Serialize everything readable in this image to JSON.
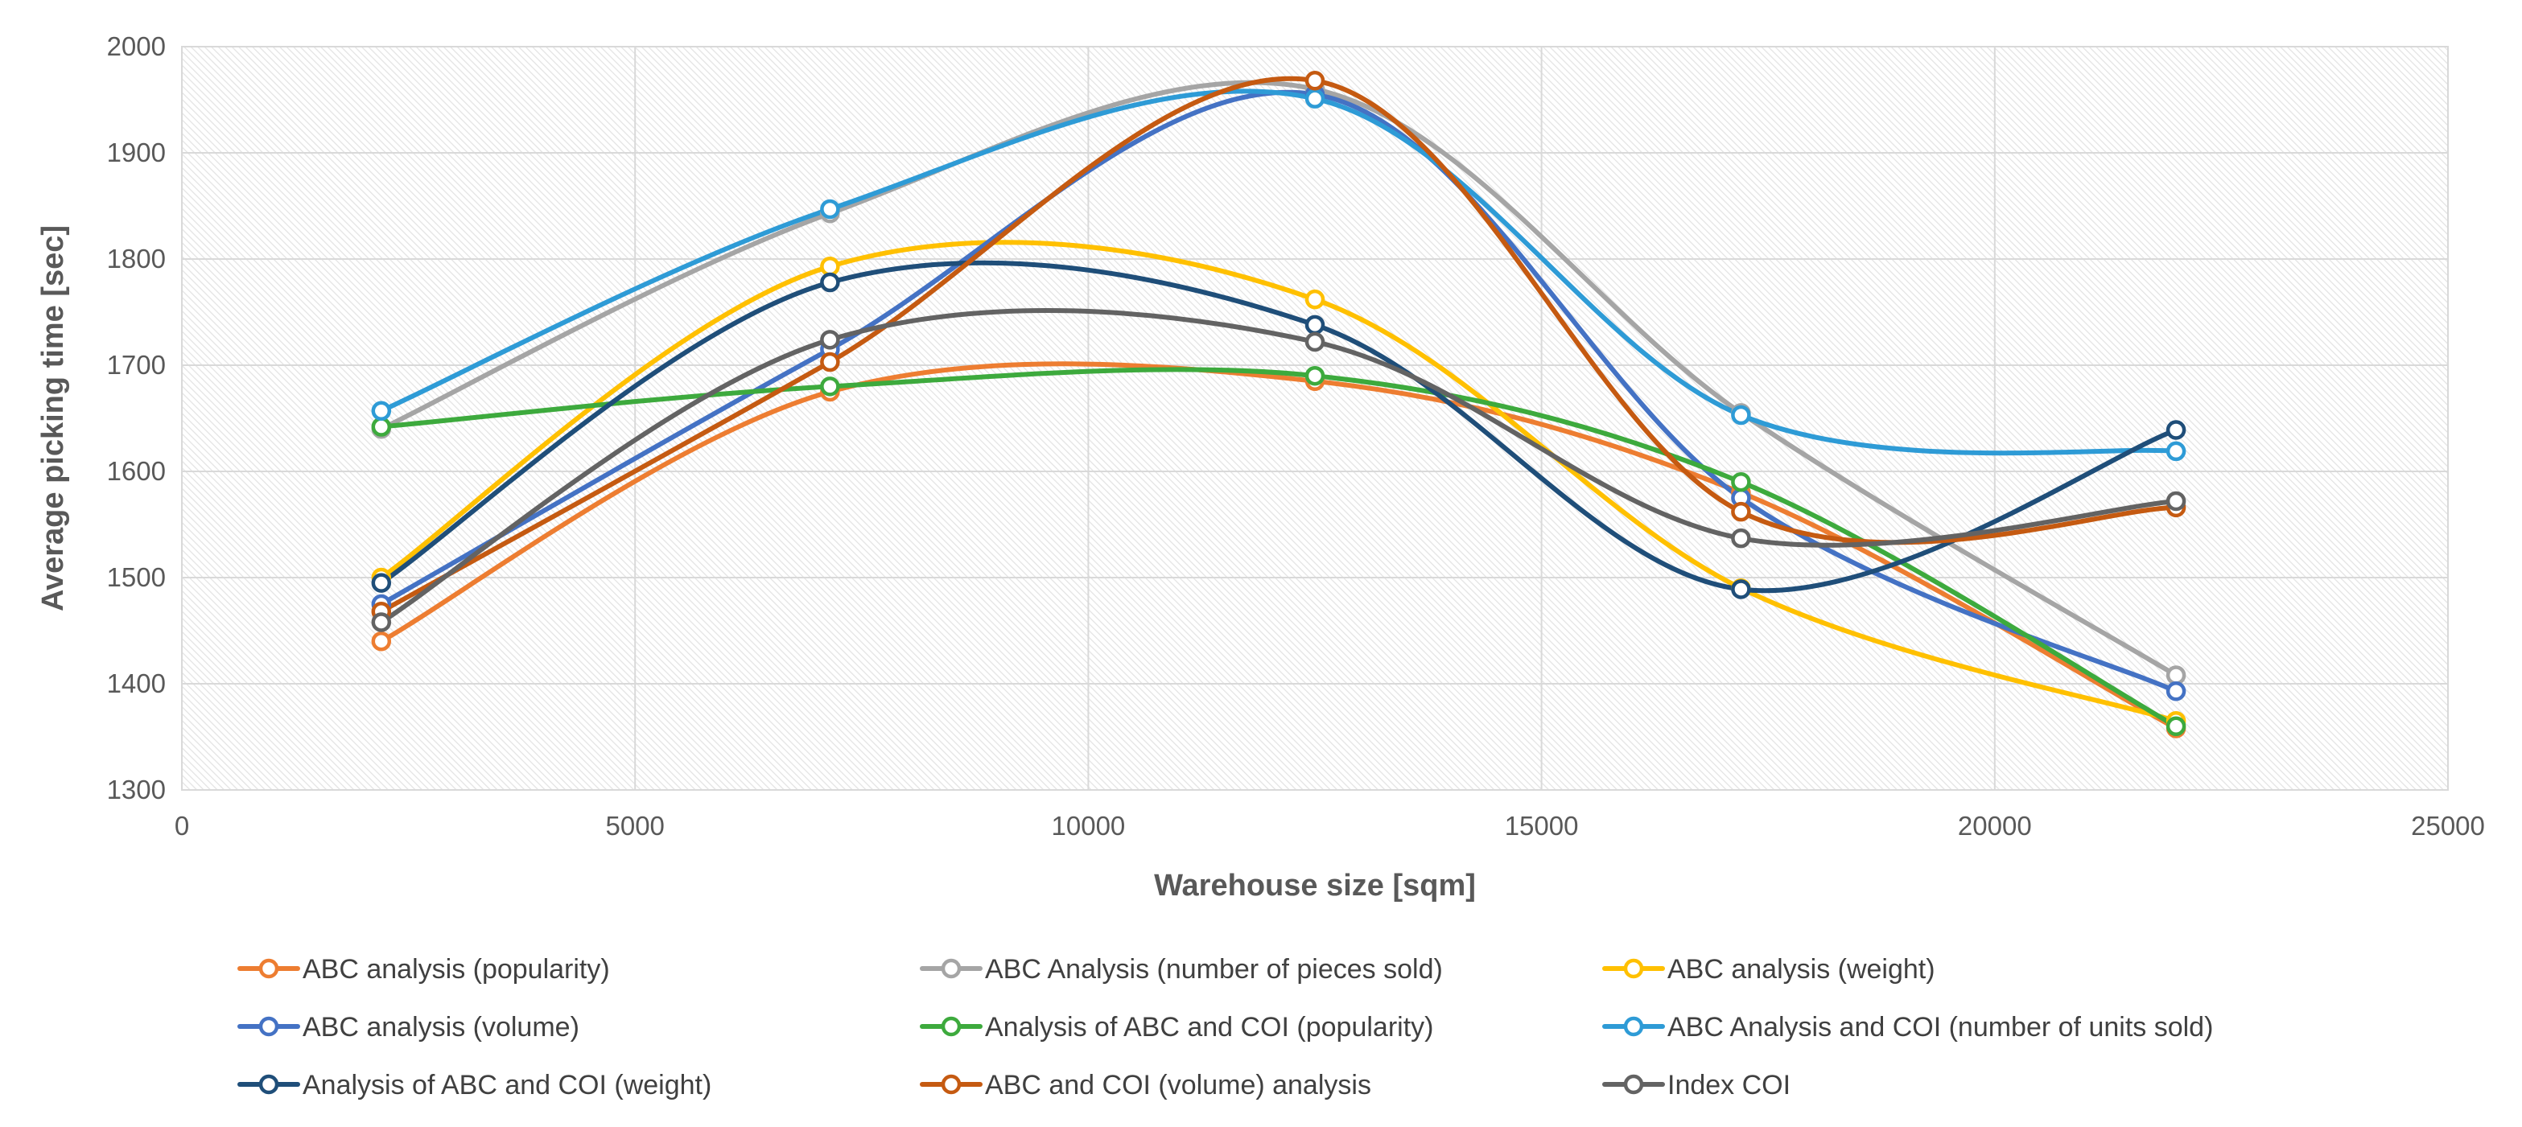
{
  "chart_data": {
    "type": "line",
    "title": "",
    "xlabel": "Warehouse size [sqm]",
    "ylabel": "Average picking time [sec]",
    "xlim": [
      0,
      25000
    ],
    "ylim": [
      1300,
      2000
    ],
    "x_ticks": [
      "0",
      "5000",
      "10000",
      "15000",
      "20000",
      "25000"
    ],
    "y_ticks": [
      "1300",
      "1400",
      "1500",
      "1600",
      "1700",
      "1800",
      "1900",
      "2000"
    ],
    "grid": true,
    "smooth": true,
    "legend_position": "bottom",
    "x": [
      2200,
      7150,
      12500,
      17200,
      22000
    ],
    "series": [
      {
        "name": "ABC analysis (popularity)",
        "color": "#ED7D31",
        "values": [
          1440,
          1675,
          1685,
          1580,
          1358
        ]
      },
      {
        "name": "ABC Analysis (number of pieces sold)",
        "color": "#A5A5A5",
        "values": [
          1640,
          1843,
          1960,
          1655,
          1408
        ]
      },
      {
        "name": "ABC analysis (weight)",
        "color": "#FFC000",
        "values": [
          1500,
          1793,
          1762,
          1490,
          1365
        ]
      },
      {
        "name": "ABC analysis (volume)",
        "color": "#4472C4",
        "values": [
          1475,
          1715,
          1955,
          1575,
          1393
        ]
      },
      {
        "name": "Analysis of ABC and COI (popularity)",
        "color": "#3DAA3D",
        "values": [
          1642,
          1680,
          1690,
          1590,
          1360
        ]
      },
      {
        "name": "ABC Analysis and COI (number of units sold)",
        "color": "#2E9BD6",
        "values": [
          1657,
          1847,
          1951,
          1653,
          1619
        ]
      },
      {
        "name": "Analysis of ABC and COI (weight)",
        "color": "#1F4E79",
        "values": [
          1495,
          1778,
          1738,
          1489,
          1639
        ]
      },
      {
        "name": "ABC and COI (volume) analysis",
        "color": "#C55A11",
        "values": [
          1468,
          1703,
          1968,
          1562,
          1566
        ]
      },
      {
        "name": "Index COI",
        "color": "#636363",
        "values": [
          1458,
          1724,
          1722,
          1537,
          1572
        ]
      }
    ]
  }
}
